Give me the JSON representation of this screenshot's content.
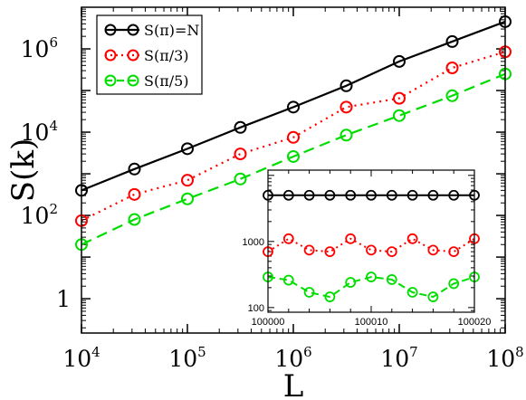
{
  "chart_data": [
    {
      "type": "line",
      "xlabel": "L",
      "ylabel": "S(k)",
      "xscale": "log",
      "yscale": "log",
      "xlim": [
        10000,
        100000000
      ],
      "ylim": [
        0.15,
        10000000
      ],
      "grid": false,
      "legend_placement": "top-left",
      "x_ticks": [
        {
          "value": 10000,
          "base": "10",
          "exp": "4"
        },
        {
          "value": 100000,
          "base": "10",
          "exp": "5"
        },
        {
          "value": 1000000,
          "base": "10",
          "exp": "6"
        },
        {
          "value": 10000000,
          "base": "10",
          "exp": "7"
        },
        {
          "value": 100000000,
          "base": "10",
          "exp": "8"
        }
      ],
      "y_ticks": [
        {
          "value": 1,
          "base": "1",
          "exp": ""
        },
        {
          "value": 100,
          "base": "10",
          "exp": "2"
        },
        {
          "value": 10000,
          "base": "10",
          "exp": "4"
        },
        {
          "value": 1000000,
          "base": "10",
          "exp": "6"
        }
      ],
      "x": [
        10000,
        31623,
        100000,
        316228,
        1000000,
        3162278,
        10000000,
        31622777,
        100000000
      ],
      "series": [
        {
          "name": "S(π)=N",
          "color": "#000000",
          "dash": "solid",
          "values": [
            400,
            1300,
            4000,
            13000,
            40000,
            130000,
            500000,
            1500000,
            4500000
          ]
        },
        {
          "name": "S(π/3)",
          "color": "#ff0000",
          "dash": "dotted",
          "values": [
            75,
            320,
            700,
            3000,
            7500,
            40000,
            65000,
            350000,
            850000
          ]
        },
        {
          "name": "S(π/5)",
          "color": "#00dd00",
          "dash": "dashed",
          "values": [
            20,
            80,
            250,
            750,
            2600,
            8500,
            25000,
            75000,
            250000
          ]
        }
      ]
    },
    {
      "type": "line",
      "inset": true,
      "yscale": "log",
      "xlim": [
        100000,
        100020
      ],
      "ylim": [
        85,
        12000
      ],
      "x_ticks": [
        {
          "value": 100000,
          "label": "100000"
        },
        {
          "value": 100010,
          "label": "100010"
        },
        {
          "value": 100020,
          "label": "100020"
        }
      ],
      "y_ticks": [
        {
          "value": 100,
          "label": "100"
        },
        {
          "value": 1000,
          "label": "1000"
        }
      ],
      "x": [
        100000,
        100002,
        100004,
        100006,
        100008,
        100010,
        100012,
        100014,
        100016,
        100018,
        100020
      ],
      "series": [
        {
          "name": "S(π)=N",
          "color": "#000000",
          "dash": "solid",
          "values": [
            5000,
            5000,
            5000,
            5000,
            5000,
            5000,
            5000,
            5000,
            5000,
            5000,
            5000
          ]
        },
        {
          "name": "S(π/3)",
          "color": "#ff0000",
          "dash": "dotted",
          "values": [
            700,
            1100,
            740,
            700,
            1100,
            740,
            700,
            1100,
            740,
            700,
            1100
          ]
        },
        {
          "name": "S(π/5)",
          "color": "#00dd00",
          "dash": "dashed",
          "values": [
            290,
            260,
            170,
            145,
            240,
            290,
            265,
            170,
            145,
            230,
            290
          ]
        }
      ]
    }
  ]
}
